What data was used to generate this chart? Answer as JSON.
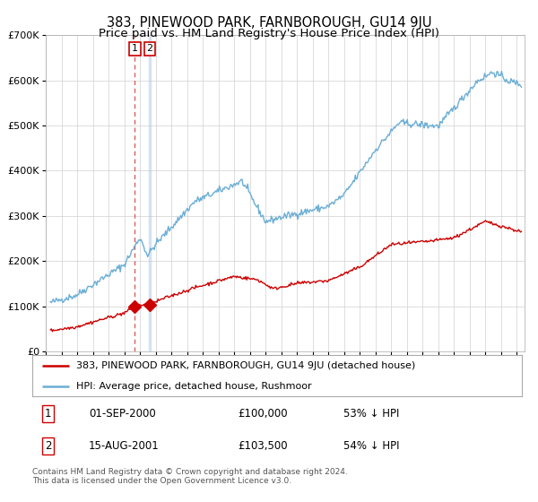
{
  "title": "383, PINEWOOD PARK, FARNBOROUGH, GU14 9JU",
  "subtitle": "Price paid vs. HM Land Registry's House Price Index (HPI)",
  "legend_line1": "383, PINEWOOD PARK, FARNBOROUGH, GU14 9JU (detached house)",
  "legend_line2": "HPI: Average price, detached house, Rushmoor",
  "annotation1_label": "1",
  "annotation1_date": "01-SEP-2000",
  "annotation1_price": "£100,000",
  "annotation1_hpi": "53% ↓ HPI",
  "annotation2_label": "2",
  "annotation2_date": "15-AUG-2001",
  "annotation2_price": "£103,500",
  "annotation2_hpi": "54% ↓ HPI",
  "footer": "Contains HM Land Registry data © Crown copyright and database right 2024.\nThis data is licensed under the Open Government Licence v3.0.",
  "red_color": "#cc0000",
  "blue_color": "#6baed6",
  "vline1_color": "#e05050",
  "vline2_color": "#aac8e8",
  "marker_color": "#cc0000",
  "grid_color": "#d0d0d0",
  "background_color": "#ffffff",
  "ylim": [
    0,
    700000
  ],
  "xlim_start": 1995.3,
  "xlim_end": 2025.5,
  "purchase1_x": 2000.67,
  "purchase1_y": 100000,
  "purchase2_x": 2001.62,
  "purchase2_y": 103500,
  "title_fontsize": 10.5,
  "subtitle_fontsize": 9.5,
  "tick_fontsize": 7.5,
  "ytick_fontsize": 8
}
